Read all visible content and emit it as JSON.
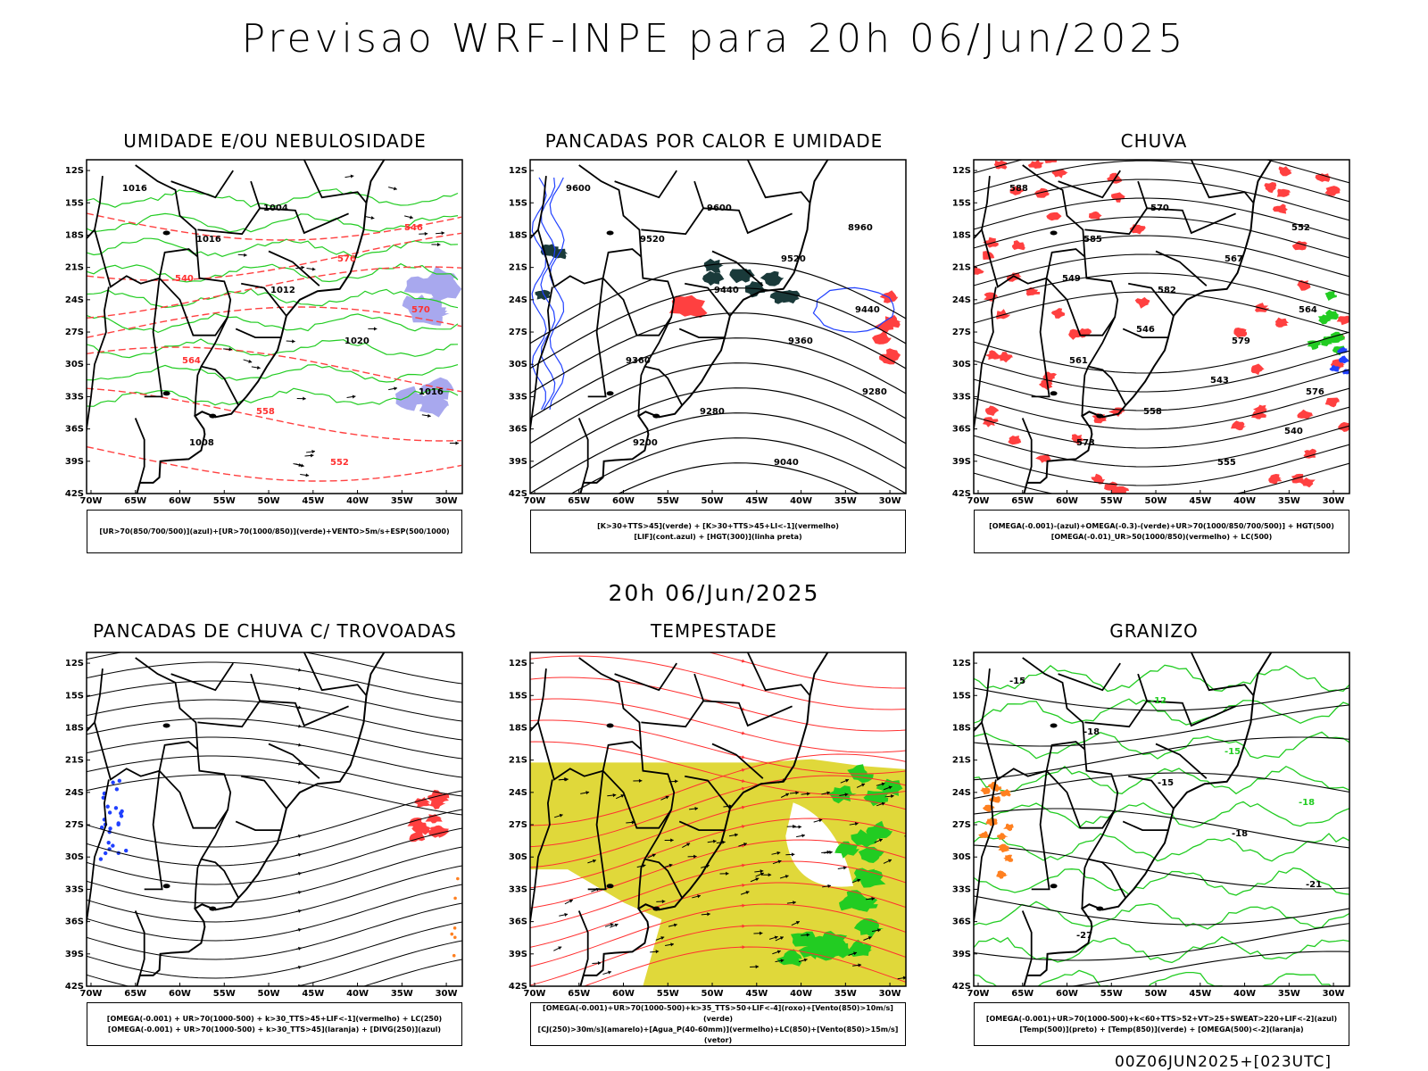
{
  "header": {
    "title": "Previsao WRF-INPE  para 20h 06/Jun/2025"
  },
  "mid_time": "20h 06/Jun/2025",
  "footer": {
    "run": "00Z06JUN2025+[023UTC]"
  },
  "axes": {
    "lat_labels": [
      "12S",
      "15S",
      "18S",
      "21S",
      "24S",
      "27S",
      "30S",
      "33S",
      "36S",
      "39S",
      "42S"
    ],
    "lon_labels": [
      "70W",
      "65W",
      "60W",
      "55W",
      "50W",
      "45W",
      "40W",
      "35W",
      "30W"
    ]
  },
  "colors": {
    "red": "#ff4040",
    "green": "#22cc22",
    "blue": "#2040ff",
    "yellow": "#e0d83a",
    "orange": "#ff8020",
    "dark": "#1a3a3a",
    "lavender": "#a8a8ee"
  },
  "panels": [
    {
      "title": "UMIDADE E/OU NEBULOSIDADE",
      "legend": [
        "[UR>70(850/700/500)](azul)+[UR>70(1000/850)](verde)+VENTO>5m/s+ESP(500/1000)"
      ],
      "contour_labels": [
        "1016",
        "1016",
        "1012",
        "1020",
        "1016",
        "1008",
        "1004",
        "576",
        "570",
        "564",
        "558",
        "552",
        "546",
        "540"
      ]
    },
    {
      "title": "PANCADAS POR CALOR E UMIDADE",
      "legend": [
        "[K>30+TTS>45](verde) + [K>30+TTS>45+LI<-1](vermelho)",
        "[LIF](cont.azul) + [HGT(300)](linha preta)"
      ],
      "contour_labels": [
        "9600",
        "9520",
        "9440",
        "9360",
        "9280",
        "9200",
        "9600",
        "9520",
        "9440",
        "9360",
        "9280",
        "9040",
        "8960"
      ]
    },
    {
      "title": "CHUVA",
      "legend": [
        "[OMEGA(-0.001)-(azul)+OMEGA(-0.3)-(verde)+UR>70(1000/850/700/500)] + HGT(500)",
        "[OMEGA(-0.01)_UR>50(1000/850)(vermelho) + LC(500)"
      ],
      "contour_labels": [
        "588",
        "585",
        "582",
        "579",
        "576",
        "573",
        "570",
        "567",
        "564",
        "561",
        "558",
        "555",
        "552",
        "549",
        "546",
        "543",
        "540"
      ]
    },
    {
      "title": "PANCADAS DE CHUVA C/ TROVOADAS",
      "legend": [
        "[OMEGA(-0.001) + UR>70(1000-500) + k>30_TTS>45+LIF<-1](vermelho) + LC(250)",
        "[OMEGA(-0.001) + UR>70(1000-500) + k>30_TTS>45](laranja) + [DIVG(250)](azul)"
      ],
      "contour_labels": []
    },
    {
      "title": "TEMPESTADE",
      "legend": [
        "[OMEGA(-0.001)+UR>70(1000-500)+k>35_TTS>50+LIF<-4](roxo)+[Vento(850)>10m/s](verde)",
        "[CJ(250)>30m/s](amarelo)+[Agua_P(40-60mm)](vermelho)+LC(850)+[Vento(850)>15m/s](vetor)"
      ],
      "contour_labels": []
    },
    {
      "title": "GRANIZO",
      "legend": [
        "[OMEGA(-0.001)+UR>70(1000-500)+k<60+TTS>52+VT>25+SWEAT>220+LIF<-2](azul)",
        "[Temp(500)](preto) + [Temp(850)](verde) + [OMEGA(500)<-2](laranja)"
      ],
      "contour_labels": [
        "-15",
        "-18",
        "-15",
        "-18",
        "-21",
        "-27",
        "-12",
        "-15",
        "-18"
      ]
    }
  ]
}
